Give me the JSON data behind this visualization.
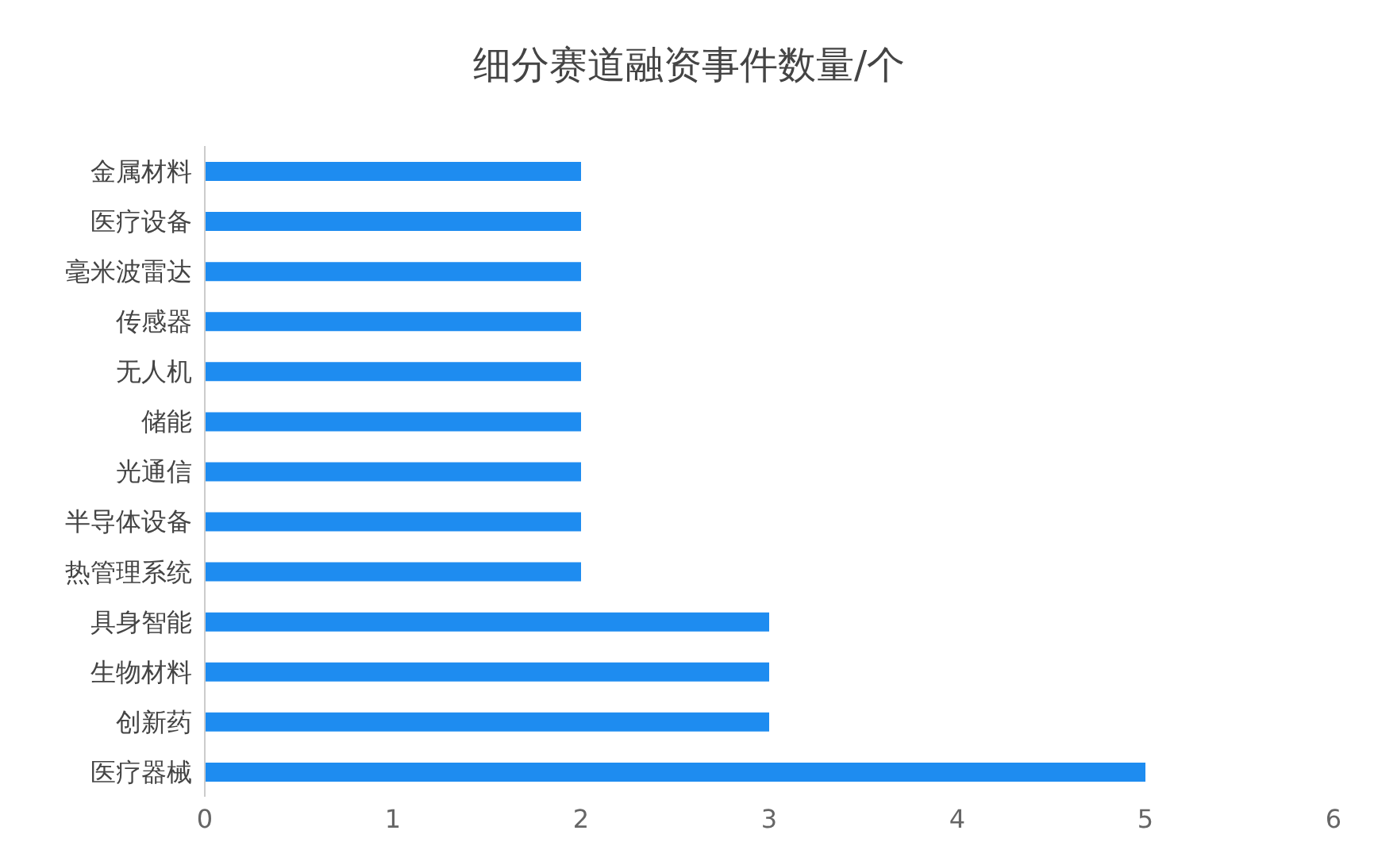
{
  "chart_data": {
    "type": "bar",
    "orientation": "horizontal",
    "title": "细分赛道融资事件数量/个",
    "categories": [
      "金属材料",
      "医疗设备",
      "毫米波雷达",
      "传感器",
      "无人机",
      "储能",
      "光通信",
      "半导体设备",
      "热管理系统",
      "具身智能",
      "生物材料",
      "创新药",
      "医疗器械"
    ],
    "values": [
      2,
      2,
      2,
      2,
      2,
      2,
      2,
      2,
      2,
      3,
      3,
      3,
      5
    ],
    "color": "#1e8cf0",
    "xlim": [
      0,
      6
    ],
    "xticks": [
      0,
      1,
      2,
      3,
      4,
      5,
      6
    ],
    "grid": false,
    "legend": false
  }
}
